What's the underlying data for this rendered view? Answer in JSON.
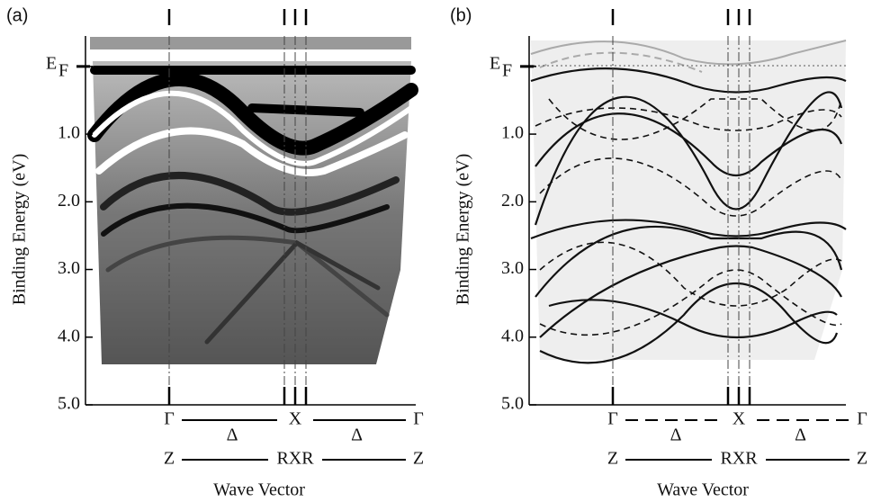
{
  "chart_data": [
    {
      "type": "arpes",
      "panel_label": "(a)",
      "y_label": "Binding Energy (eV)",
      "x_label": "Wave Vector",
      "ylim": [
        -0.45,
        5
      ],
      "yticks": [
        {
          "value": 0,
          "label": "E",
          "sub": "F"
        },
        {
          "value": 1,
          "label": "1.0"
        },
        {
          "value": 2,
          "label": "2.0"
        },
        {
          "value": 3,
          "label": "3.0"
        },
        {
          "value": 4,
          "label": "4.0"
        },
        {
          "value": 5,
          "label": "5.0"
        }
      ],
      "path_top": [
        "Γ",
        "Δ",
        "X",
        "Δ",
        "Γ"
      ],
      "path_bottom": [
        "Z",
        "RXR",
        "Z"
      ],
      "path_dashed": false
    },
    {
      "type": "bands",
      "panel_label": "(b)",
      "y_label": "Binding Energy (eV)",
      "x_label": "Wave Vector",
      "ylim": [
        -0.45,
        5
      ],
      "yticks": [
        {
          "value": 0,
          "label": "E",
          "sub": "F"
        },
        {
          "value": 1,
          "label": "1.0"
        },
        {
          "value": 2,
          "label": "2.0"
        },
        {
          "value": 3,
          "label": "3.0"
        },
        {
          "value": 4,
          "label": "4.0"
        },
        {
          "value": 5,
          "label": "5.0"
        }
      ],
      "path_top": [
        "Γ",
        "Δ",
        "X",
        "Δ",
        "Γ"
      ],
      "path_bottom": [
        "Z",
        "RXR",
        "Z"
      ],
      "path_dashed": true
    }
  ]
}
